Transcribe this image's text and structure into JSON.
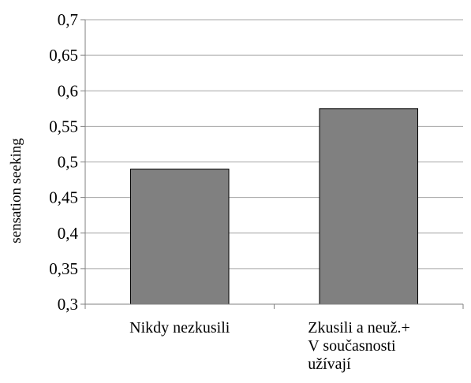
{
  "chart_data": {
    "type": "bar",
    "title": "",
    "xlabel": "",
    "ylabel": "sensation seeking",
    "ylim": [
      0.3,
      0.7
    ],
    "yticks": [
      "0,3",
      "0,35",
      "0,4",
      "0,45",
      "0,5",
      "0,55",
      "0,6",
      "0,65",
      "0,7"
    ],
    "ytick_values": [
      0.3,
      0.35,
      0.4,
      0.45,
      0.5,
      0.55,
      0.6,
      0.65,
      0.7
    ],
    "categories": [
      [
        "Nikdy nezkusili"
      ],
      [
        "Zkusili a neuž.+",
        "V současnosti",
        "užívají"
      ]
    ],
    "values": [
      0.49,
      0.575
    ],
    "grid": true,
    "legend": "none",
    "colors": {
      "bar_fill": "#808080",
      "bar_stroke": "#000000",
      "gridline": "#a6a6a6",
      "axis": "#808080"
    }
  }
}
